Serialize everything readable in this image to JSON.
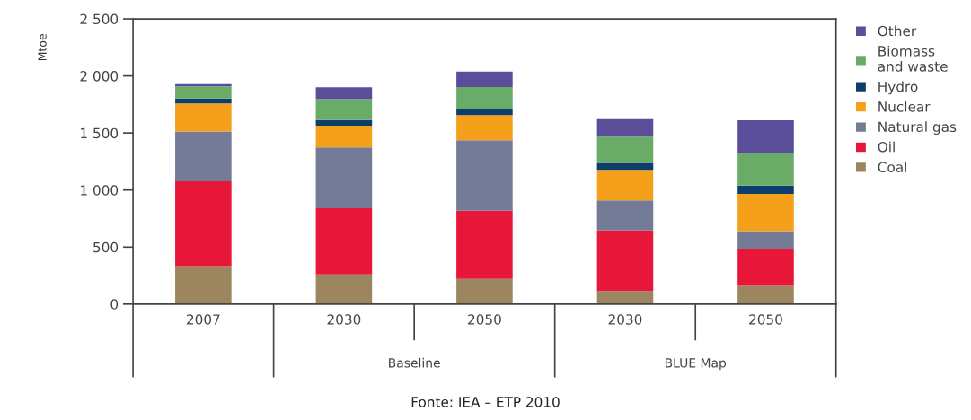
{
  "chart_data": {
    "type": "bar",
    "stacked": true,
    "ylabel": "Mtoe",
    "categories": [
      "2007",
      "2030",
      "2050",
      "2030",
      "2050"
    ],
    "series": [
      {
        "name": "Coal",
        "color": "#9b8660",
        "values": [
          333,
          260,
          220,
          115,
          160
        ]
      },
      {
        "name": "Oil",
        "color": "#e8173a",
        "values": [
          743,
          580,
          599,
          532,
          322
        ]
      },
      {
        "name": "Natural gas",
        "color": "#737b96",
        "values": [
          438,
          533,
          617,
          263,
          157
        ]
      },
      {
        "name": "Nuclear",
        "color": "#f5a01a",
        "values": [
          245,
          191,
          220,
          267,
          328
        ]
      },
      {
        "name": "Hydro",
        "color": "#0d3e6b",
        "values": [
          44,
          50,
          58,
          60,
          73
        ]
      },
      {
        "name": "Biomass\nand waste",
        "color": "#6aab68",
        "values": [
          105,
          184,
          189,
          231,
          283
        ]
      },
      {
        "name": "Other",
        "color": "#5a4e9a",
        "values": [
          21,
          102,
          136,
          154,
          289
        ]
      }
    ],
    "ylim": [
      0,
      2500
    ],
    "yticks": [
      0,
      500,
      {
        "value": 1000,
        "label": "1 000"
      },
      {
        "value": 1500,
        "label": "1 500"
      },
      {
        "value": 2000,
        "label": "2 000"
      },
      {
        "value": 2500,
        "label": "2 500"
      }
    ],
    "annotations": [
      "Baseline",
      "BLUE Map",
      "Fonte: IEA – ETP 2010"
    ],
    "legend": "right",
    "grid": false
  }
}
